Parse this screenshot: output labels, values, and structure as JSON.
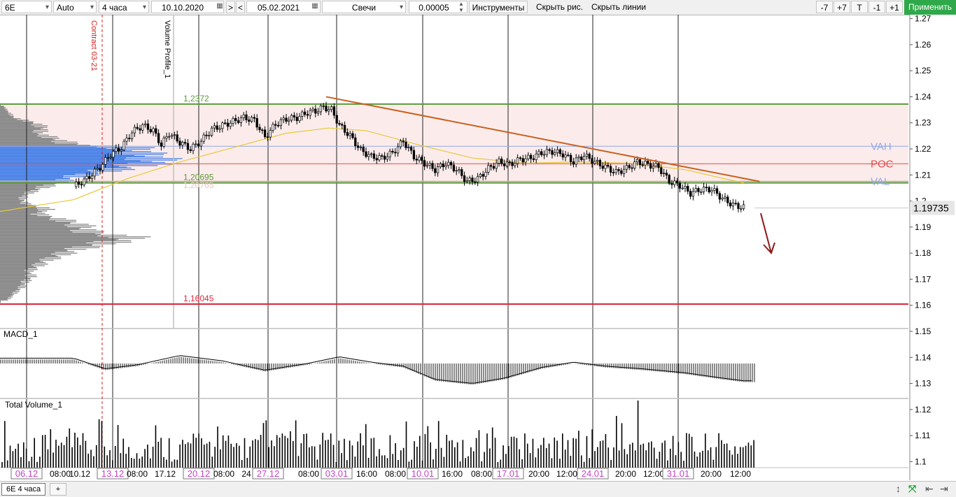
{
  "toolbar": {
    "symbol": "6E",
    "scale": "Auto",
    "timeframe": "4 часа",
    "date_from": "10.10.2020",
    "nav_next": ">",
    "nav_prev": "<",
    "date_to": "05.02.2021",
    "chart_type": "Свечи",
    "tick_size": "0.00005",
    "instruments": "Инструменты",
    "hide_drawings": "Скрыть рис.",
    "hide_lines": "Скрыть линии",
    "zoom_minus7": "-7",
    "zoom_plus7": "+7",
    "t_button": "T",
    "zoom_minus1": "-1",
    "zoom_plus1": "+1",
    "apply": "Применить"
  },
  "chart_data": {
    "type": "candlestick",
    "instrument": "6E",
    "timeframe": "4 часа",
    "ylim": [
      1.0985,
      1.2715
    ],
    "y_ticks": [
      "1.27",
      "1.26",
      "1.25",
      "1.24",
      "1.23",
      "1.22",
      "1.21",
      "1.2",
      "1.19",
      "1.18",
      "1.17",
      "1.16",
      "1.15",
      "1.14",
      "1.13",
      "1.12",
      "1.11",
      "1.1"
    ],
    "current_price": "1.19735",
    "levels": [
      {
        "name": "range-high-level",
        "price": 1.2372,
        "label": "1,2372",
        "color": "#5a9a3a"
      },
      {
        "name": "range-low-level",
        "price": 1.20695,
        "label": "1,20695",
        "color": "#5a9a3a"
      },
      {
        "name": "secondary-level",
        "price": 1.20765,
        "label": "1,20765",
        "color": "#e8c7b5"
      },
      {
        "name": "support-level",
        "price": 1.16045,
        "label": "1,16045",
        "color": "#d8283c"
      }
    ],
    "profile_levels": [
      {
        "name": "vah",
        "label": "VAH",
        "price": 1.221,
        "color": "#8fa8e8"
      },
      {
        "name": "poc",
        "label": "POC",
        "price": 1.2143,
        "color": "#e04a4a"
      },
      {
        "name": "val",
        "label": "VAL",
        "price": 1.2075,
        "color": "#8fa8e8"
      }
    ],
    "vertical_annotations": [
      {
        "name": "contract-label",
        "label": "Contract 03-21",
        "color": "#d32020"
      },
      {
        "name": "volume-profile-label",
        "label": "Volume Profile_1",
        "color": "#000000"
      }
    ],
    "close_path": [
      [
        0,
        1.2055
      ],
      [
        5,
        1.2085
      ],
      [
        10,
        1.213
      ],
      [
        14,
        1.218
      ],
      [
        18,
        1.2205
      ],
      [
        22,
        1.2265
      ],
      [
        26,
        1.229
      ],
      [
        30,
        1.227
      ],
      [
        33,
        1.2215
      ],
      [
        36,
        1.226
      ],
      [
        40,
        1.2225
      ],
      [
        44,
        1.22
      ],
      [
        48,
        1.223
      ],
      [
        52,
        1.2275
      ],
      [
        56,
        1.229
      ],
      [
        60,
        1.2305
      ],
      [
        64,
        1.232
      ],
      [
        68,
        1.231
      ],
      [
        72,
        1.2245
      ],
      [
        76,
        1.2295
      ],
      [
        80,
        1.2315
      ],
      [
        84,
        1.232
      ],
      [
        88,
        1.234
      ],
      [
        91,
        1.2345
      ],
      [
        94,
        1.236
      ],
      [
        97,
        1.235
      ],
      [
        100,
        1.229
      ],
      [
        104,
        1.225
      ],
      [
        108,
        1.2195
      ],
      [
        112,
        1.217
      ],
      [
        116,
        1.2165
      ],
      [
        120,
        1.2185
      ],
      [
        124,
        1.223
      ],
      [
        128,
        1.217
      ],
      [
        132,
        1.2145
      ],
      [
        136,
        1.212
      ],
      [
        140,
        1.2145
      ],
      [
        144,
        1.212
      ],
      [
        148,
        1.2075
      ],
      [
        152,
        1.2085
      ],
      [
        156,
        1.2125
      ],
      [
        160,
        1.215
      ],
      [
        164,
        1.214
      ],
      [
        168,
        1.216
      ],
      [
        172,
        1.2165
      ],
      [
        176,
        1.2185
      ],
      [
        180,
        1.219
      ],
      [
        184,
        1.218
      ],
      [
        188,
        1.215
      ],
      [
        192,
        1.2175
      ],
      [
        196,
        1.215
      ],
      [
        200,
        1.213
      ],
      [
        204,
        1.211
      ],
      [
        208,
        1.2125
      ],
      [
        212,
        1.215
      ],
      [
        216,
        1.214
      ],
      [
        220,
        1.213
      ],
      [
        224,
        1.2075
      ],
      [
        228,
        1.206
      ],
      [
        232,
        1.203
      ],
      [
        236,
        1.2045
      ],
      [
        240,
        1.2045
      ],
      [
        244,
        1.201
      ],
      [
        248,
        1.1985
      ],
      [
        252,
        1.1975
      ]
    ],
    "ma_path": [
      [
        0,
        1.2005
      ],
      [
        20,
        1.2085
      ],
      [
        40,
        1.215
      ],
      [
        60,
        1.2205
      ],
      [
        80,
        1.226
      ],
      [
        96,
        1.228
      ],
      [
        110,
        1.227
      ],
      [
        130,
        1.2215
      ],
      [
        150,
        1.2165
      ],
      [
        170,
        1.2145
      ],
      [
        190,
        1.215
      ],
      [
        210,
        1.2145
      ],
      [
        230,
        1.212
      ],
      [
        245,
        1.2085
      ],
      [
        252,
        1.207
      ]
    ],
    "trendline": {
      "start": [
        95,
        1.24
      ],
      "end": [
        258,
        1.2075
      ],
      "color": "#c8601e"
    },
    "profile_shape": [
      [
        1.2365,
        6
      ],
      [
        1.2345,
        12
      ],
      [
        1.232,
        22
      ],
      [
        1.23,
        55
      ],
      [
        1.228,
        70
      ],
      [
        1.226,
        60
      ],
      [
        1.224,
        85
      ],
      [
        1.222,
        110
      ],
      [
        1.2205,
        205
      ],
      [
        1.218,
        225
      ],
      [
        1.216,
        245
      ],
      [
        1.2145,
        240
      ],
      [
        1.213,
        200
      ],
      [
        1.211,
        155
      ],
      [
        1.209,
        110
      ],
      [
        1.207,
        90
      ],
      [
        1.205,
        65
      ],
      [
        1.203,
        45
      ],
      [
        1.201,
        35
      ],
      [
        1.199,
        40
      ],
      [
        1.197,
        75
      ],
      [
        1.195,
        60
      ],
      [
        1.193,
        95
      ],
      [
        1.191,
        125
      ],
      [
        1.188,
        140
      ],
      [
        1.186,
        210
      ],
      [
        1.1845,
        180
      ],
      [
        1.183,
        150
      ],
      [
        1.181,
        110
      ],
      [
        1.179,
        95
      ],
      [
        1.177,
        70
      ],
      [
        1.175,
        60
      ],
      [
        1.173,
        45
      ],
      [
        1.171,
        50
      ],
      [
        1.169,
        40
      ],
      [
        1.167,
        35
      ],
      [
        1.165,
        25
      ],
      [
        1.162,
        12
      ]
    ],
    "profile_value_area": [
      1.2075,
      1.221
    ],
    "indicators": [
      {
        "name": "macd",
        "label": "MACD_1"
      },
      {
        "name": "total-volume",
        "label": "Total Volume_1"
      }
    ],
    "macd_line": [
      [
        0,
        0.2
      ],
      [
        12,
        -0.2
      ],
      [
        24,
        -0.05
      ],
      [
        40,
        0.3
      ],
      [
        56,
        0.1
      ],
      [
        72,
        -0.25
      ],
      [
        88,
        0.0
      ],
      [
        100,
        0.25
      ],
      [
        112,
        0.05
      ],
      [
        124,
        -0.1
      ],
      [
        136,
        -0.6
      ],
      [
        150,
        -0.75
      ],
      [
        162,
        -0.55
      ],
      [
        176,
        -0.15
      ],
      [
        188,
        0.05
      ],
      [
        200,
        -0.1
      ],
      [
        214,
        -0.2
      ],
      [
        230,
        -0.35
      ],
      [
        244,
        -0.55
      ],
      [
        252,
        -0.65
      ]
    ],
    "x_labels": [
      "06.12",
      "08:00",
      "10.12",
      "13.12",
      "08:00",
      "17.12",
      "20.12",
      "08:00",
      "24",
      "27.12",
      "08:00",
      "03.01",
      "16:00",
      "08:00",
      "10.01",
      "16:00",
      "08:00",
      "17.01",
      "20:00",
      "12:00",
      "24.01",
      "20:00",
      "12:00",
      "31.01",
      "20:00",
      "12:00"
    ],
    "x_label_boxed": [
      true,
      false,
      false,
      true,
      false,
      false,
      true,
      false,
      false,
      true,
      false,
      true,
      false,
      false,
      true,
      false,
      false,
      true,
      false,
      false,
      true,
      false,
      false,
      true,
      false,
      false
    ]
  },
  "bottombar": {
    "tab_label": "6E 4 часа",
    "add_tab": "+"
  },
  "colors": {
    "apply_button": "#2fa84a",
    "candle": "#000000",
    "profile_value_area": "#4f86e8",
    "profile_outside": "#8c8c8c",
    "range_fill": "#fbeceb",
    "ma_line": "#e8c83a",
    "forecast_arrow": "#8b1a1a",
    "date_label_text": "#c642c6"
  }
}
